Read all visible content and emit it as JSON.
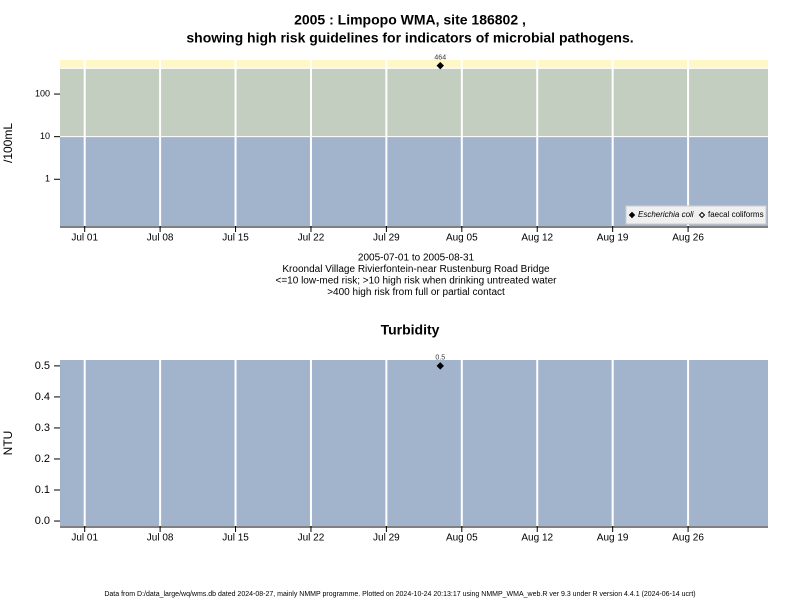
{
  "chart_data": [
    {
      "type": "scatter",
      "title": [
        "2005 : Limpopo WMA, site 186802 ,",
        "showing high risk guidelines for indicators of microbial pathogens."
      ],
      "ylabel": "/100mL",
      "log_y": true,
      "ylim": [
        0.08,
        630
      ],
      "yticks": [
        1,
        10,
        100
      ],
      "xlim": [
        "2005-06-28T17:00",
        "2005-09-02T10:00"
      ],
      "xticks": [
        {
          "value": "2005-07-01",
          "label": "Jul 01"
        },
        {
          "value": "2005-07-08",
          "label": "Jul 08"
        },
        {
          "value": "2005-07-15",
          "label": "Jul 15"
        },
        {
          "value": "2005-07-22",
          "label": "Jul 22"
        },
        {
          "value": "2005-07-29",
          "label": "Jul 29"
        },
        {
          "value": "2005-08-05",
          "label": "Aug 05"
        },
        {
          "value": "2005-08-12",
          "label": "Aug 12"
        },
        {
          "value": "2005-08-19",
          "label": "Aug 19"
        },
        {
          "value": "2005-08-26",
          "label": "Aug 26"
        }
      ],
      "thresholds": [
        10,
        400
      ],
      "band_colors": [
        "#a2b4cc",
        "#c3cdc0",
        "#fff8c6"
      ],
      "grid": true,
      "legend": "bottom-right",
      "series": [
        {
          "name": "Escherichia coli",
          "color": "#000000",
          "x": [
            "2005-08-03"
          ],
          "values": [
            464
          ]
        },
        {
          "name": "faecal coliforms",
          "color": "#000000",
          "x": [],
          "values": []
        }
      ],
      "notes": [
        "2005-07-01 to 2005-08-31",
        "Kroondal Village Rivierfontein-near Rustenburg Road Bridge",
        "<=10 low-med risk; >10 high risk when drinking untreated water",
        ">400 high risk from full or partial contact"
      ]
    },
    {
      "type": "scatter",
      "title": [
        "Turbidity"
      ],
      "ylabel": "NTU",
      "log_y": false,
      "ylim": [
        -0.016,
        0.519
      ],
      "yticks": [
        {
          "value": 0,
          "label": "0.0"
        },
        0.1,
        0.2,
        0.3,
        0.4,
        0.5
      ],
      "xlim": [
        "2005-06-28T17:00",
        "2005-09-02T10:00"
      ],
      "xticks": [
        {
          "value": "2005-07-01",
          "label": "Jul 01"
        },
        {
          "value": "2005-07-08",
          "label": "Jul 08"
        },
        {
          "value": "2005-07-15",
          "label": "Jul 15"
        },
        {
          "value": "2005-07-22",
          "label": "Jul 22"
        },
        {
          "value": "2005-07-29",
          "label": "Jul 29"
        },
        {
          "value": "2005-08-05",
          "label": "Aug 05"
        },
        {
          "value": "2005-08-12",
          "label": "Aug 12"
        },
        {
          "value": "2005-08-19",
          "label": "Aug 19"
        },
        {
          "value": "2005-08-26",
          "label": "Aug 26"
        }
      ],
      "band_colors": [
        "#a2b4cc"
      ],
      "grid": true,
      "series": [
        {
          "name": "Turbidity",
          "color": "#000000",
          "x": [
            "2005-08-03"
          ],
          "values": [
            0.5
          ]
        }
      ]
    }
  ],
  "footer": "Data from D:/data_large/wq/wms.db dated 2024-08-27, mainly NMMP programme. Plotted on 2024-10-24 20:13:17 using NMMP_WMA_web.R ver 9.3 under R version 4.4.1 (2024-06-14 ucrt)"
}
